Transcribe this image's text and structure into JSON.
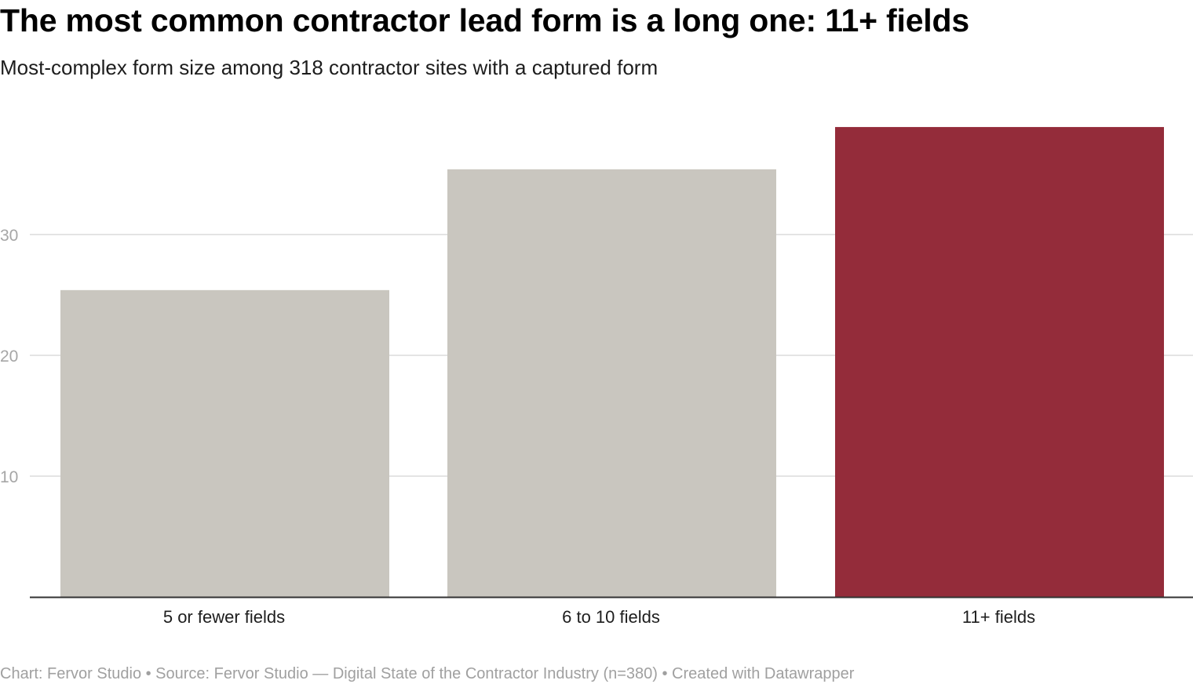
{
  "header": {
    "title": "The most common contractor lead form is a long one: 11+ fields",
    "subtitle": "Most-complex form size among 318 contractor sites with a captured form"
  },
  "footer": {
    "text": "Chart: Fervor Studio • Source: Fervor Studio — Digital State of the Contractor Industry (n=380) • Created with Datawrapper"
  },
  "chart_data": {
    "type": "bar",
    "title": "The most common contractor lead form is a long one: 11+ fields",
    "subtitle": "Most-complex form size among 318 contractor sites with a captured form",
    "categories": [
      "5 or fewer fields",
      "6 to 10 fields",
      "11+ fields"
    ],
    "values": [
      25.4,
      35.4,
      38.9
    ],
    "yticks": [
      10,
      20,
      30
    ],
    "ylim": [
      0,
      39.5
    ],
    "grid": true,
    "legend": "none",
    "colors": {
      "default_bar": "#c9c6bf",
      "highlight_bar": "#942c3a",
      "gridline": "#e4e4e4",
      "baseline": "#333333"
    },
    "highlight_index": 2
  }
}
